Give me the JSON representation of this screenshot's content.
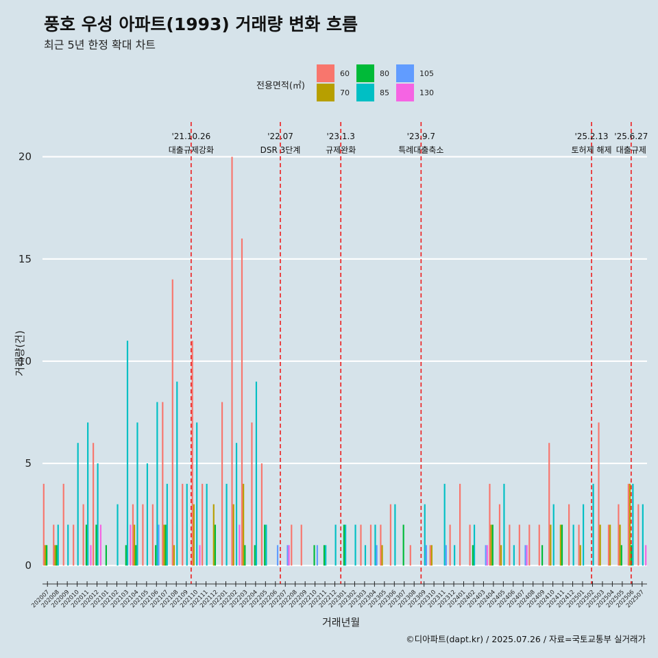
{
  "title": "풍호 우성 아파트(1993) 거래량 변화 흐름",
  "subtitle": "최근 5년 한정 확대 차트",
  "caption": "©디아파트(dapt.kr) / 2025.07.26 / 자료=국토교통부 실거래가",
  "legend": {
    "title": "전용면적(㎡)",
    "items": [
      {
        "label": "60",
        "color": "#F8766D"
      },
      {
        "label": "70",
        "color": "#B79F00"
      },
      {
        "label": "80",
        "color": "#00BA38"
      },
      {
        "label": "85",
        "color": "#00BFC4"
      },
      {
        "label": "105",
        "color": "#619CFF"
      },
      {
        "label": "130",
        "color": "#F564E3"
      }
    ]
  },
  "chart_data": {
    "type": "bar",
    "xlabel": "거래년월",
    "ylabel": "거래량(건)",
    "ylim": [
      -0.9,
      21.7
    ],
    "yticks": [
      0,
      5,
      10,
      15,
      20
    ],
    "categories": [
      "202007",
      "202008",
      "202009",
      "202010",
      "202011",
      "202012",
      "202101",
      "202102",
      "202103",
      "202104",
      "202105",
      "202106",
      "202107",
      "202108",
      "202109",
      "202110",
      "202111",
      "202112",
      "202201",
      "202202",
      "202203",
      "202204",
      "202205",
      "202206",
      "202207",
      "202208",
      "202209",
      "202210",
      "202211",
      "202212",
      "202301",
      "202302",
      "202303",
      "202304",
      "202305",
      "202306",
      "202307",
      "202308",
      "202309",
      "202310",
      "202311",
      "202312",
      "202401",
      "202402",
      "202403",
      "202404",
      "202405",
      "202406",
      "202407",
      "202408",
      "202409",
      "202410",
      "202411",
      "202412",
      "202501",
      "202502",
      "202503",
      "202504",
      "202505",
      "202506",
      "202507"
    ],
    "series": [
      {
        "name": "60",
        "color": "#F8766D",
        "values": [
          4,
          2,
          4,
          2,
          3,
          6,
          0,
          0,
          0,
          3,
          3,
          3,
          8,
          14,
          4,
          11,
          4,
          0,
          8,
          20,
          16,
          7,
          5,
          0,
          0,
          2,
          2,
          0,
          0,
          0,
          0,
          0,
          2,
          2,
          2,
          3,
          0,
          1,
          0,
          1,
          0,
          2,
          4,
          2,
          0,
          4,
          3,
          2,
          2,
          2,
          2,
          6,
          0,
          3,
          2,
          0,
          7,
          2,
          3,
          4,
          3
        ]
      },
      {
        "name": "70",
        "color": "#B79F00",
        "values": [
          1,
          1,
          0,
          0,
          0,
          0,
          0,
          0,
          0,
          2,
          0,
          0,
          2,
          1,
          0,
          3,
          0,
          3,
          0,
          3,
          4,
          0,
          0,
          0,
          0,
          0,
          0,
          0,
          0,
          0,
          0,
          0,
          0,
          0,
          1,
          0,
          0,
          0,
          0,
          1,
          0,
          0,
          0,
          0,
          0,
          2,
          1,
          0,
          0,
          0,
          0,
          2,
          2,
          0,
          1,
          0,
          2,
          2,
          2,
          4,
          0
        ]
      },
      {
        "name": "80",
        "color": "#00BA38",
        "values": [
          1,
          1,
          0,
          0,
          2,
          2,
          1,
          0,
          1,
          1,
          0,
          1,
          2,
          0,
          0,
          0,
          0,
          2,
          0,
          0,
          1,
          1,
          2,
          0,
          0,
          0,
          0,
          1,
          1,
          0,
          2,
          0,
          0,
          0,
          0,
          0,
          2,
          0,
          0,
          0,
          0,
          0,
          0,
          1,
          0,
          2,
          0,
          0,
          0,
          0,
          1,
          0,
          2,
          0,
          0,
          0,
          0,
          0,
          1,
          1,
          0
        ]
      },
      {
        "name": "85",
        "color": "#00BFC4",
        "values": [
          0,
          2,
          2,
          6,
          7,
          5,
          0,
          3,
          11,
          7,
          5,
          8,
          4,
          9,
          4,
          7,
          4,
          0,
          4,
          6,
          0,
          9,
          2,
          0,
          0,
          0,
          0,
          0,
          1,
          2,
          2,
          2,
          1,
          2,
          0,
          3,
          0,
          0,
          3,
          0,
          4,
          1,
          0,
          2,
          0,
          0,
          4,
          1,
          0,
          0,
          0,
          3,
          0,
          2,
          3,
          4,
          0,
          0,
          0,
          4,
          3
        ]
      },
      {
        "name": "105",
        "color": "#619CFF",
        "values": [
          0,
          0,
          0,
          0,
          0,
          0,
          0,
          0,
          0,
          0,
          0,
          2,
          0,
          0,
          0,
          0,
          0,
          0,
          0,
          0,
          0,
          0,
          0,
          1,
          1,
          0,
          0,
          1,
          0,
          0,
          0,
          0,
          0,
          1,
          0,
          0,
          0,
          0,
          1,
          0,
          1,
          0,
          0,
          0,
          1,
          0,
          0,
          0,
          1,
          0,
          0,
          0,
          0,
          0,
          0,
          0,
          0,
          0,
          0,
          0,
          0
        ]
      },
      {
        "name": "130",
        "color": "#F564E3",
        "values": [
          0,
          0,
          0,
          0,
          1,
          2,
          0,
          0,
          2,
          0,
          0,
          0,
          0,
          0,
          0,
          1,
          0,
          0,
          0,
          2,
          0,
          0,
          0,
          0,
          1,
          0,
          0,
          0,
          0,
          0,
          0,
          0,
          0,
          0,
          0,
          0,
          0,
          0,
          0,
          0,
          0,
          0,
          0,
          0,
          1,
          0,
          0,
          0,
          1,
          0,
          0,
          0,
          0,
          0,
          0,
          0,
          0,
          0,
          0,
          0,
          1
        ]
      }
    ],
    "events": [
      {
        "date": "'21.10.26",
        "label": "대출규제강화",
        "x": 15.0
      },
      {
        "date": "'22.07",
        "label": "DSR 3단계",
        "x": 24.0
      },
      {
        "date": "'23.1.3",
        "label": "규제완화",
        "x": 30.1
      },
      {
        "date": "'23.9.7",
        "label": "특례대출축소",
        "x": 38.2
      },
      {
        "date": "'25.2.13",
        "label": "토허제 해제",
        "x": 55.4
      },
      {
        "date": "'25.6.27",
        "label": "대출규제",
        "x": 59.4
      }
    ]
  }
}
